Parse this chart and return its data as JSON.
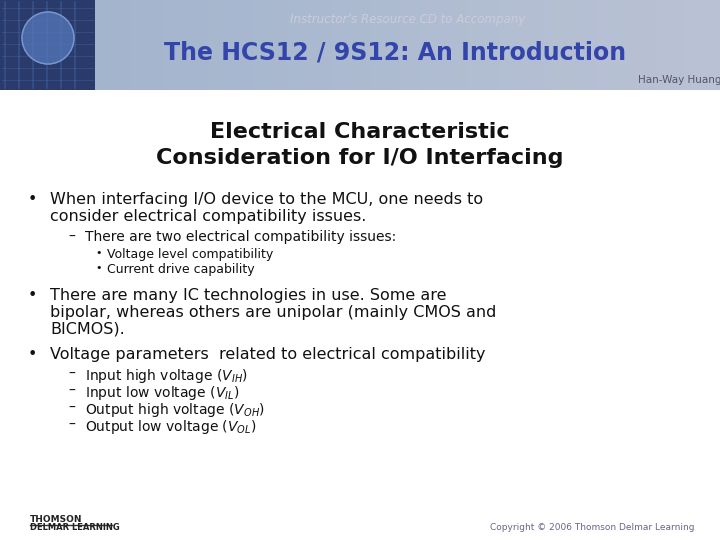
{
  "title_line1": "Electrical Characteristic",
  "title_line2": "Consideration for I/O Interfacing",
  "header_subtitle": "Instructor’s Resource CD to Accompany",
  "header_title": "The HCS12 / 9S12: An Introduction",
  "header_author": "Han-Way Huang",
  "footer_left_line1": "THOMSON",
  "footer_left_line2": "DELMAR LEARNING",
  "footer_right": "Copyright © 2006 Thomson Delmar Learning",
  "bg_color": "#ffffff",
  "header_grad_left": "#c8ccdc",
  "header_grad_right": "#9098b8",
  "header_subtitle_color": "#ccccdd",
  "header_title_color": "#3344aa",
  "header_author_color": "#555566",
  "title_color": "#111111",
  "body_color": "#111111"
}
